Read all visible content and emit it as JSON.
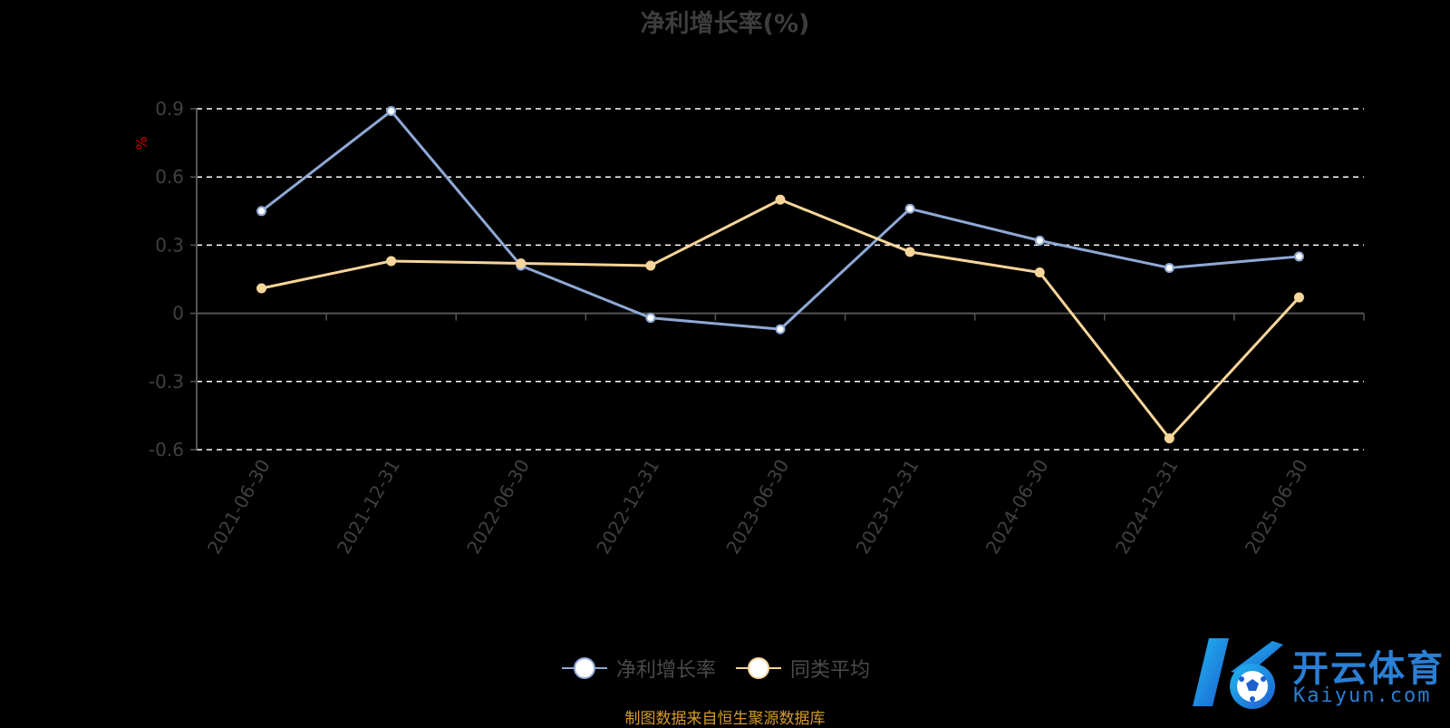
{
  "title": "净利增长率(%)",
  "source_note": "制图数据来自恒生聚源数据库",
  "logo": {
    "cn": "开云体育",
    "en": "Kaiyun.com"
  },
  "colors": {
    "series1": "#8fa9d6",
    "series2": "#f8d59a",
    "unit": "#cc0000",
    "axis_text": "#404040",
    "grid": "#ffffff",
    "axis_line": "#555555"
  },
  "chart_data": {
    "type": "line",
    "title": "净利增长率(%)",
    "ylabel": "%",
    "xlabel": "",
    "x": [
      "2021-06-30",
      "2021-12-31",
      "2022-06-30",
      "2022-12-31",
      "2023-06-30",
      "2023-12-31",
      "2024-06-30",
      "2024-12-31",
      "2025-06-30"
    ],
    "ylim": [
      -0.6,
      0.9
    ],
    "yticks": [
      "0.9",
      "0.6",
      "0.3",
      "0",
      "-0.3",
      "-0.6"
    ],
    "grid": true,
    "legend_position": "bottom",
    "series": [
      {
        "name": "净利增长率",
        "values": [
          0.45,
          0.89,
          0.21,
          -0.02,
          -0.07,
          0.46,
          0.32,
          0.2,
          0.25
        ]
      },
      {
        "name": "同类平均",
        "values": [
          0.11,
          0.23,
          0.22,
          0.21,
          0.5,
          0.27,
          0.18,
          -0.55,
          0.07
        ]
      }
    ]
  }
}
